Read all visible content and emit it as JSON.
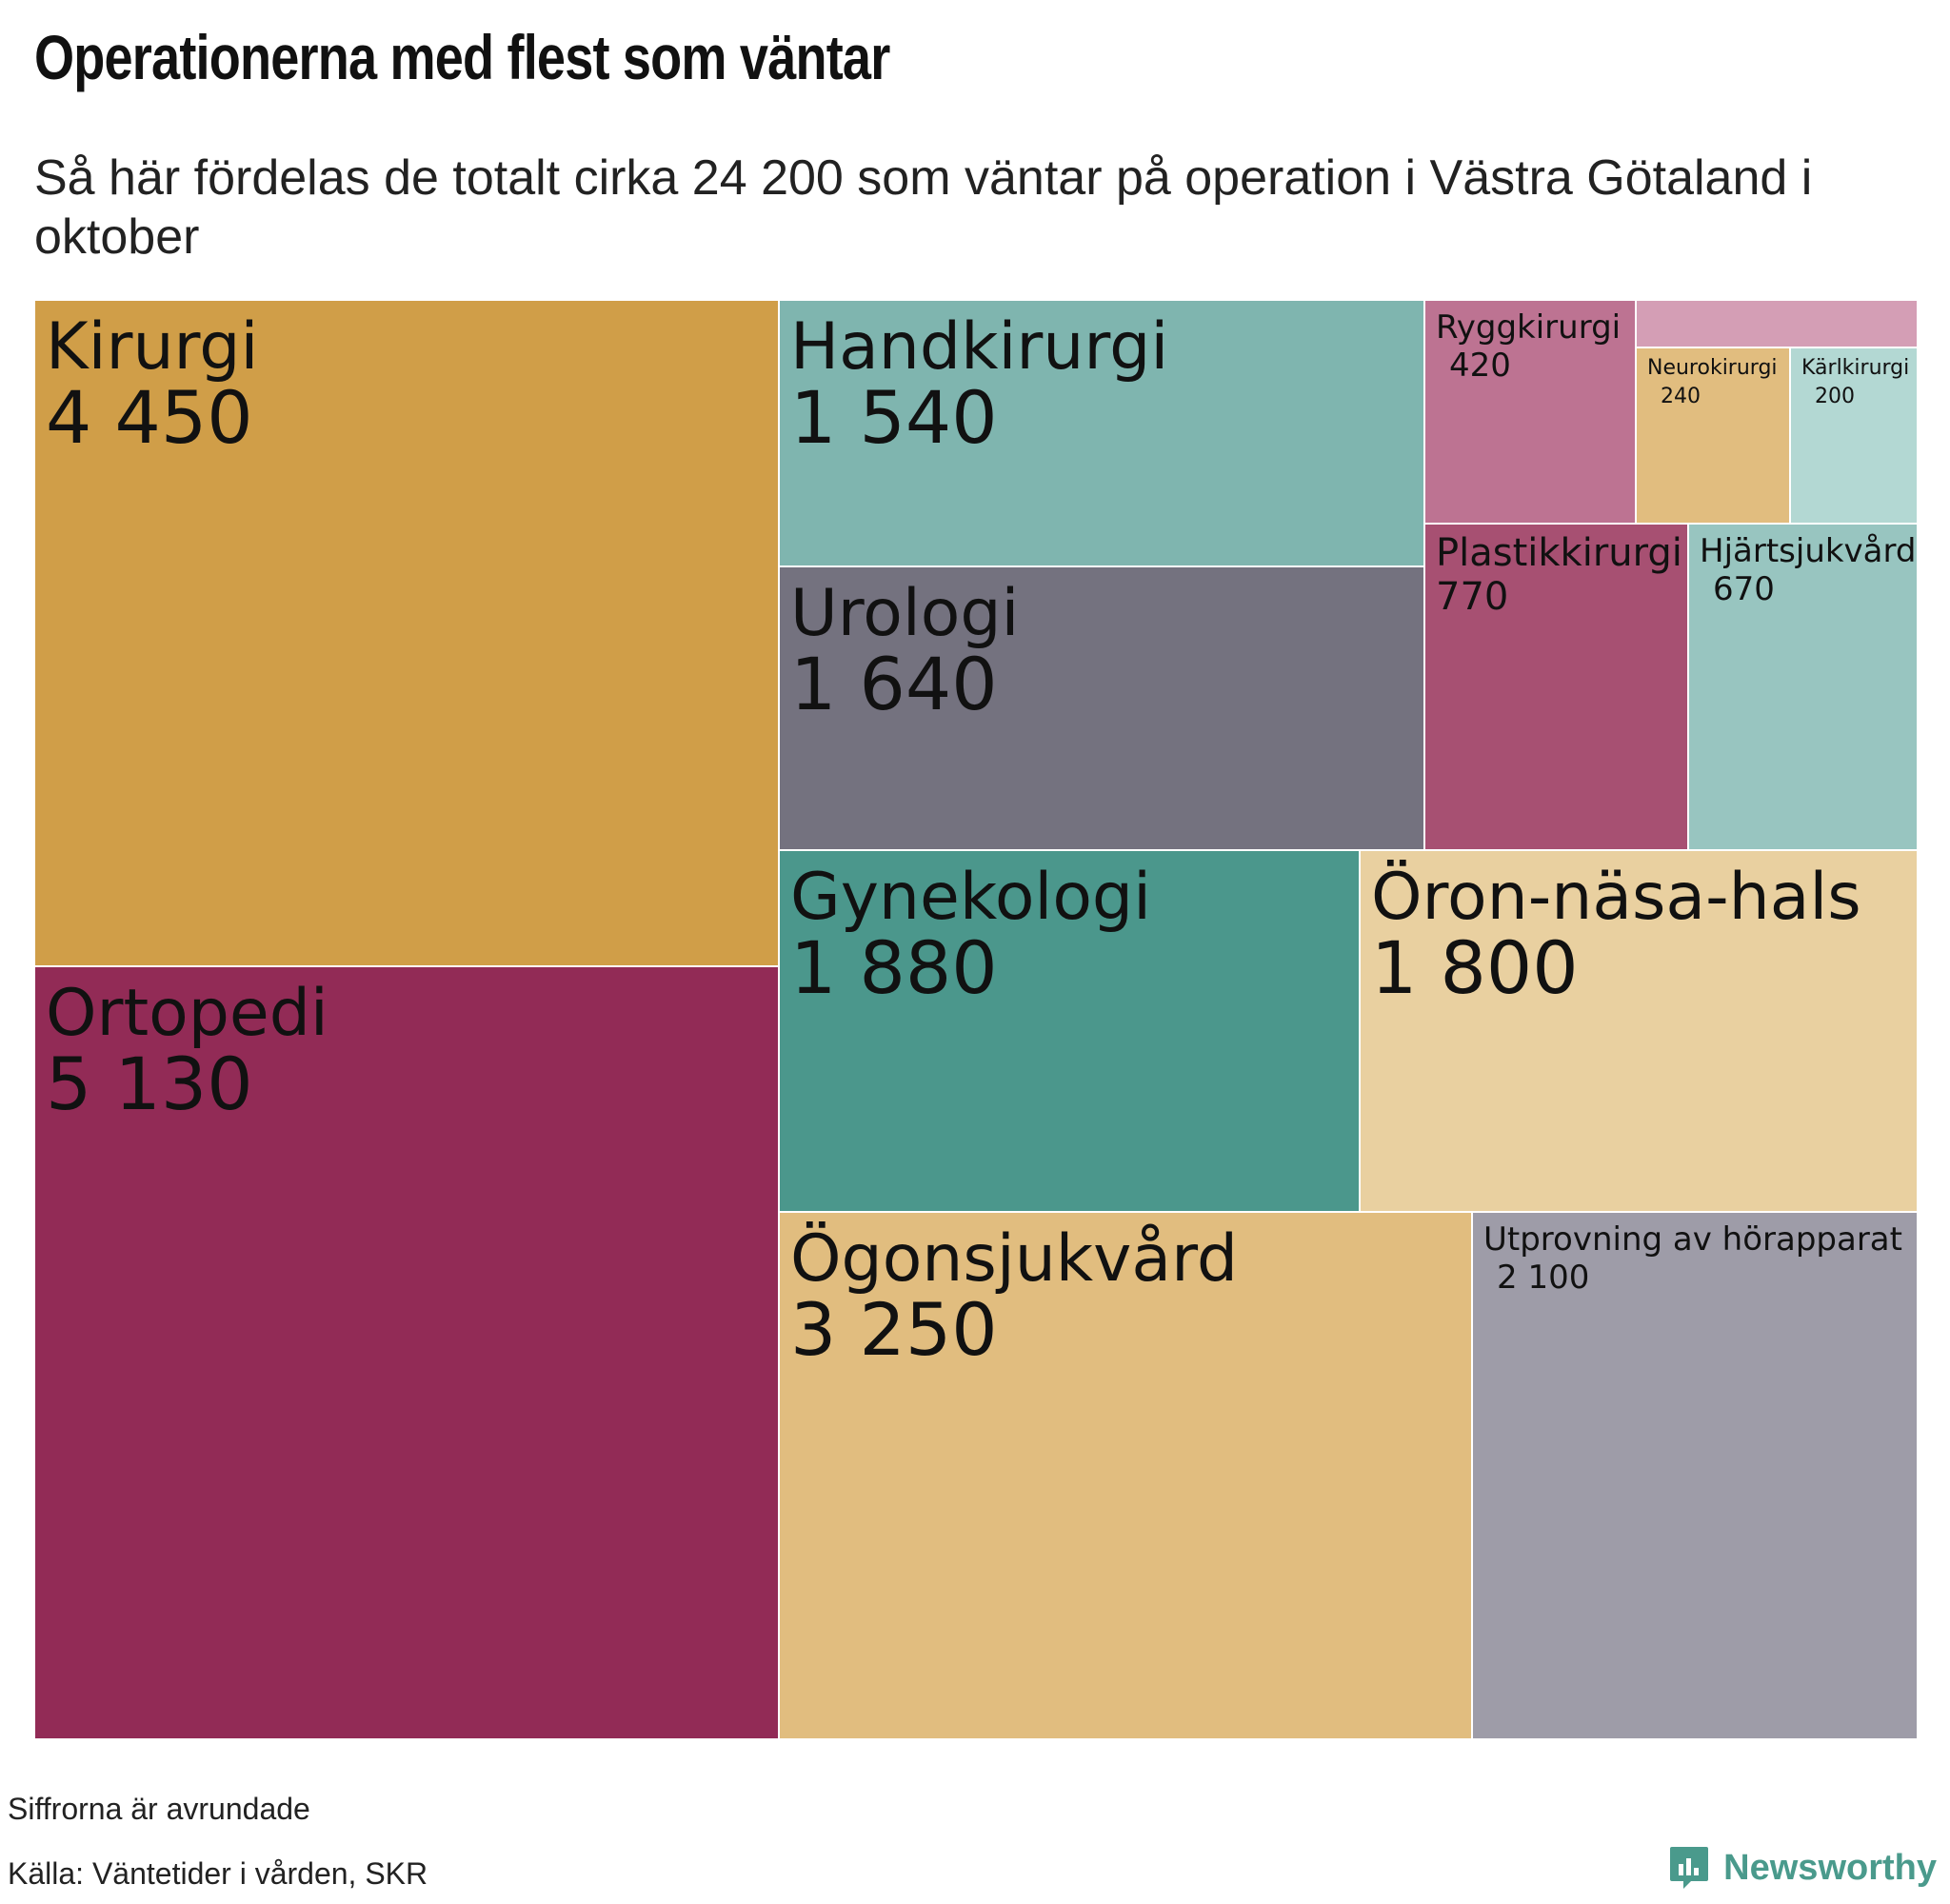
{
  "title": "Operationerna med flest som väntar",
  "subtitle": "Så här fördelas de totalt cirka 24 200 som väntar på operation i Västra Götaland i oktober",
  "note": "Siffrorna är avrundade",
  "source": "Källa: Väntetider i vården, SKR",
  "brand": {
    "name": "Newsworthy",
    "icon": "newsworthy-logo-icon",
    "color": "#4a9a8c"
  },
  "chart_data": {
    "type": "treemap",
    "total_approx": 24200,
    "items": [
      {
        "name": "Kirurgi",
        "value": 4450,
        "value_label": "4 450",
        "color": "#d09e48"
      },
      {
        "name": "Ortopedi",
        "value": 5130,
        "value_label": "5 130",
        "color": "#922b56"
      },
      {
        "name": "Handkirurgi",
        "value": 1540,
        "value_label": "1 540",
        "color": "#7fb5af"
      },
      {
        "name": "Urologi",
        "value": 1640,
        "value_label": "1 640",
        "color": "#74727f"
      },
      {
        "name": "Gynekologi",
        "value": 1880,
        "value_label": "1 880",
        "color": "#4b978c"
      },
      {
        "name": "Öron-näsa-hals",
        "value": 1800,
        "value_label": "1 800",
        "color": "#e9d0a0"
      },
      {
        "name": "Ögonsjukvård",
        "value": 3250,
        "value_label": "3 250",
        "color": "#e1bd7f"
      },
      {
        "name": "Utprovning av hörapparat",
        "value": 2100,
        "value_label": "2 100",
        "color": "#9e9ca8"
      },
      {
        "name": "Ryggkirurgi",
        "value": 420,
        "value_label": "420",
        "color": "#bd7392"
      },
      {
        "name": "Neurokirurgi",
        "value": 240,
        "value_label": "240",
        "color": "#e1bd7f"
      },
      {
        "name": "Kärlkirurgi",
        "value": 200,
        "value_label": "200",
        "color": "#b3d8d3"
      },
      {
        "name": "Plastikkirurgi",
        "value": 770,
        "value_label": "770",
        "color": "#a75072"
      },
      {
        "name": "Hjärtsjukvård",
        "value": 670,
        "value_label": "670",
        "color": "#98c5c0"
      },
      {
        "name": "",
        "value": null,
        "value_label": "",
        "color": "#d49eb5"
      }
    ]
  }
}
